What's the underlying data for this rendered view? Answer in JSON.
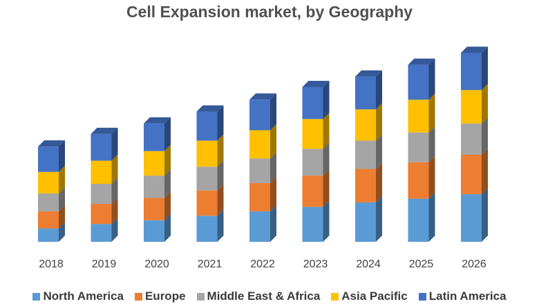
{
  "chart_data": {
    "type": "bar",
    "stacked": true,
    "title": "Cell Expansion market, by Geography",
    "xlabel": "",
    "ylabel": "",
    "categories": [
      "2018",
      "2019",
      "2020",
      "2021",
      "2022",
      "2023",
      "2024",
      "2025",
      "2026"
    ],
    "series": [
      {
        "name": "North America",
        "color": "#5B9BD5",
        "values": [
          18,
          24,
          29,
          35,
          41,
          47,
          53,
          58,
          64
        ]
      },
      {
        "name": "Europe",
        "color": "#ED7D31",
        "values": [
          23,
          27,
          30,
          34,
          38,
          42,
          45,
          49,
          53
        ]
      },
      {
        "name": "Middle East & Africa",
        "color": "#A5A5A5",
        "values": [
          24,
          27,
          30,
          32,
          33,
          36,
          38,
          40,
          42
        ]
      },
      {
        "name": "Asia Pacific",
        "color": "#FFC000",
        "values": [
          29,
          31,
          33,
          35,
          38,
          40,
          42,
          44,
          45
        ]
      },
      {
        "name": "Latin America",
        "color": "#4472C4",
        "values": [
          34,
          36,
          37,
          39,
          41,
          43,
          44,
          47,
          50
        ]
      }
    ],
    "legend_position": "bottom",
    "grid": false,
    "ylim": [
      0,
      260
    ]
  }
}
